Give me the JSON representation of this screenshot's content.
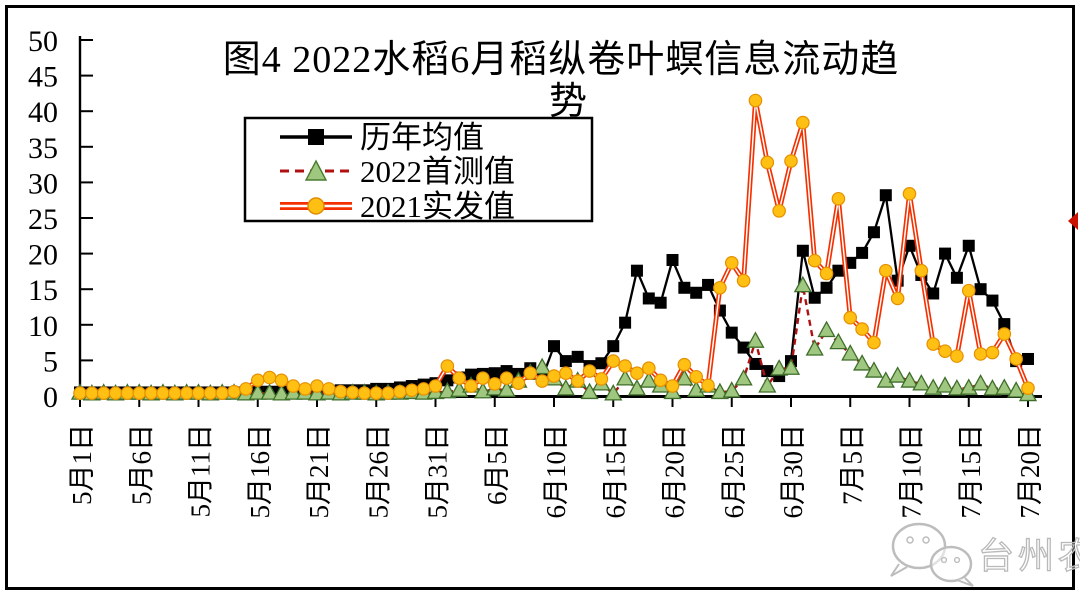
{
  "title": {
    "line1": "图4  2022水稻6月稻纵卷叶螟信息流动趋",
    "line2": "势"
  },
  "y_axis": {
    "ticks": [
      "0",
      "5",
      "10",
      "15",
      "20",
      "25",
      "30",
      "35",
      "40",
      "45",
      "50"
    ],
    "min": 0,
    "max": 50
  },
  "x_axis": {
    "tick_labels": [
      "5月1日",
      "5月6日",
      "5月11日",
      "5月16日",
      "5月21日",
      "5月26日",
      "5月31日",
      "6月5日",
      "6月10日",
      "6月15日",
      "6月20日",
      "6月25日",
      "6月30日",
      "7月5日",
      "7月10日",
      "7月15日",
      "7月20日"
    ]
  },
  "legend": {
    "items": [
      {
        "label": "历年均值",
        "marker": "black-square",
        "line": "solid",
        "color": "#000000",
        "fill": "#000000"
      },
      {
        "label": "2022首测值",
        "marker": "green-triangle",
        "line": "dashed",
        "color": "#b01010",
        "fill": "#9fc77f"
      },
      {
        "label": "2021实发值",
        "marker": "yellow-circle",
        "line": "double-red",
        "color": "#f53000",
        "fill": "#ffc013"
      }
    ]
  },
  "watermark": {
    "text": "台州农资",
    "icon": "wechat-bubbles-icon",
    "color": "#bdbdbd"
  },
  "annotation": {
    "right_edge_arrow_color": "#cc1100"
  },
  "chart_data": {
    "type": "line",
    "title": "图4 2022水稻6月稻纵卷叶螟信息流动趋势",
    "ylim": [
      0,
      50
    ],
    "grid": false,
    "legend_position": "upper-left",
    "x_tick_labels": [
      "5月1日",
      "5月6日",
      "5月11日",
      "5月16日",
      "5月21日",
      "5月26日",
      "5月31日",
      "6月5日",
      "6月10日",
      "6月15日",
      "6月20日",
      "6月25日",
      "6月30日",
      "7月5日",
      "7月10日",
      "7月15日",
      "7月20日"
    ],
    "x_dates": [
      "5月1日",
      "5月2日",
      "5月3日",
      "5月4日",
      "5月5日",
      "5月6日",
      "5月7日",
      "5月8日",
      "5月9日",
      "5月10日",
      "5月11日",
      "5月12日",
      "5月13日",
      "5月14日",
      "5月15日",
      "5月16日",
      "5月17日",
      "5月18日",
      "5月19日",
      "5月20日",
      "5月21日",
      "5月22日",
      "5月23日",
      "5月24日",
      "5月25日",
      "5月26日",
      "5月27日",
      "5月28日",
      "5月29日",
      "5月30日",
      "5月31日",
      "6月1日",
      "6月2日",
      "6月3日",
      "6月4日",
      "6月5日",
      "6月6日",
      "6月7日",
      "6月8日",
      "6月9日",
      "6月10日",
      "6月11日",
      "6月12日",
      "6月13日",
      "6月14日",
      "6月15日",
      "6月16日",
      "6月17日",
      "6月18日",
      "6月19日",
      "6月20日",
      "6月21日",
      "6月22日",
      "6月23日",
      "6月24日",
      "6月25日",
      "6月26日",
      "6月27日",
      "6月28日",
      "6月29日",
      "6月30日",
      "7月1日",
      "7月2日",
      "7月3日",
      "7月4日",
      "7月5日",
      "7月6日",
      "7月7日",
      "7月8日",
      "7月9日",
      "7月10日",
      "7月11日",
      "7月12日",
      "7月13日",
      "7月14日",
      "7月15日",
      "7月16日",
      "7月17日",
      "7月18日",
      "7月19日",
      "7月20日"
    ],
    "series": [
      {
        "name": "历年均值",
        "color": "#000000",
        "marker": "square",
        "marker_fill": "#000000",
        "line_style": "solid",
        "values": [
          0.5,
          0.5,
          0.5,
          0.5,
          0.5,
          0.5,
          0.5,
          0.5,
          0.5,
          0.5,
          0.5,
          0.5,
          0.5,
          0.5,
          0.5,
          0.6,
          0.6,
          0.6,
          0.6,
          0.7,
          0.7,
          0.7,
          0.8,
          0.8,
          0.8,
          1.0,
          1.0,
          1.2,
          1.4,
          1.6,
          1.8,
          2.2,
          2.6,
          3.0,
          3.1,
          3.2,
          3.5,
          3.1,
          3.9,
          2.5,
          7.0,
          4.9,
          5.5,
          4.2,
          4.6,
          7.0,
          10.3,
          17.6,
          13.7,
          13.1,
          19.1,
          15.2,
          14.5,
          15.6,
          12.0,
          8.9,
          6.8,
          4.5,
          3.5,
          2.8,
          4.9,
          20.4,
          13.8,
          15.2,
          17.6,
          18.7,
          20.1,
          23.0,
          28.2,
          16.2,
          21.1,
          17.0,
          14.4,
          20.0,
          16.6,
          21.1,
          15.0,
          13.4,
          10.1,
          4.9,
          5.2
        ]
      },
      {
        "name": "2022首测值",
        "color": "#b01010",
        "marker": "triangle",
        "marker_fill": "#9fc77f",
        "line_style": "dashed",
        "values": [
          0.4,
          0.3,
          0.4,
          0.3,
          0.4,
          0.4,
          0.3,
          0.4,
          0.3,
          0.4,
          0.4,
          0.3,
          0.4,
          0.4,
          0.3,
          0.4,
          0.4,
          0.3,
          0.4,
          0.4,
          0.3,
          0.4,
          0.3,
          0.4,
          0.4,
          0.3,
          0.4,
          0.4,
          0.5,
          0.4,
          0.5,
          0.6,
          0.8,
          1.4,
          0.6,
          1.0,
          0.8,
          2.1,
          3.2,
          4.0,
          2.4,
          1.0,
          2.1,
          0.5,
          1.7,
          0.3,
          2.4,
          1.0,
          2.1,
          1.4,
          0.5,
          2.4,
          0.8,
          1.4,
          0.5,
          0.7,
          2.4,
          7.7,
          1.4,
          3.8,
          3.9,
          15.5,
          6.6,
          9.2,
          7.5,
          5.9,
          4.5,
          3.5,
          2.1,
          2.8,
          2.1,
          1.7,
          1.1,
          1.4,
          1.0,
          1.1,
          1.7,
          1.0,
          1.1,
          0.7,
          0.2
        ]
      },
      {
        "name": "2021实发值",
        "color": "#f53000",
        "marker": "circle",
        "marker_fill": "#ffc013",
        "line_style": "double",
        "values": [
          0.4,
          0.4,
          0.4,
          0.4,
          0.4,
          0.4,
          0.4,
          0.4,
          0.4,
          0.4,
          0.4,
          0.4,
          0.4,
          0.6,
          1.0,
          2.2,
          2.6,
          2.2,
          1.4,
          1.0,
          1.4,
          1.0,
          0.6,
          0.5,
          0.4,
          0.4,
          0.4,
          0.6,
          0.8,
          1.0,
          1.4,
          4.2,
          2.5,
          1.4,
          2.5,
          1.7,
          2.5,
          1.8,
          3.2,
          2.1,
          2.8,
          3.2,
          2.1,
          3.5,
          2.4,
          4.9,
          4.2,
          3.2,
          3.9,
          2.2,
          1.4,
          4.4,
          2.7,
          1.5,
          15.2,
          18.7,
          16.2,
          41.5,
          32.8,
          26.0,
          33.0,
          38.4,
          19.0,
          17.2,
          27.7,
          11.0,
          9.4,
          7.5,
          17.6,
          13.7,
          28.4,
          17.6,
          7.3,
          6.3,
          5.6,
          14.8,
          5.9,
          6.1,
          8.7,
          5.2,
          1.1
        ]
      }
    ]
  }
}
